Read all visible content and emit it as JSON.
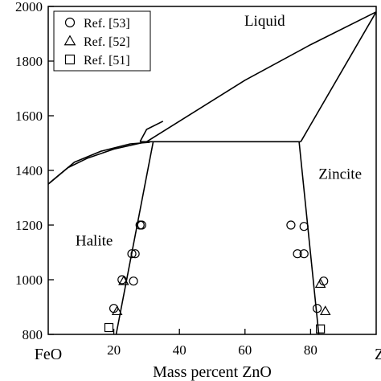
{
  "chart_data": {
    "type": "scatter",
    "title": "",
    "xlabel": "Mass percent ZnO",
    "ylabel": "",
    "xlim": [
      0,
      100
    ],
    "ylim": [
      800,
      2000
    ],
    "x_ticks": [
      20,
      40,
      60,
      80
    ],
    "x_tick_labels": [
      "20",
      "40",
      "60",
      "80"
    ],
    "x_end_labels": {
      "left": "FeO",
      "right": "Zn"
    },
    "y_ticks": [
      800,
      1000,
      1200,
      1400,
      1600,
      1800,
      2000
    ],
    "y_tick_labels": [
      "800",
      "1000",
      "1200",
      "1400",
      "1600",
      "1800",
      "2000"
    ],
    "grid": false,
    "legend_position": "top-left",
    "region_labels": [
      {
        "text": "Liquid",
        "x": 66,
        "y": 1950
      },
      {
        "text": "Zincite",
        "x": 89,
        "y": 1390
      },
      {
        "text": "Halite",
        "x": 14,
        "y": 1145
      }
    ],
    "phase_boundaries": [
      {
        "name": "liquidus-upper",
        "points": [
          [
            0,
            1350
          ],
          [
            6,
            1410
          ],
          [
            12,
            1445
          ],
          [
            20,
            1478
          ],
          [
            30,
            1505
          ],
          [
            40,
            1580
          ],
          [
            60,
            1730
          ],
          [
            80,
            1860
          ],
          [
            100,
            1980
          ]
        ]
      },
      {
        "name": "halite-liquidus",
        "points": [
          [
            0,
            1350
          ],
          [
            8,
            1430
          ],
          [
            16,
            1470
          ],
          [
            25,
            1497
          ],
          [
            31,
            1503
          ]
        ]
      },
      {
        "name": "halite-solidus",
        "points": [
          [
            28,
            1505
          ],
          [
            30,
            1550
          ],
          [
            35,
            1580
          ]
        ]
      },
      {
        "name": "eutectic",
        "points": [
          [
            28,
            1505
          ],
          [
            77,
            1505
          ]
        ]
      },
      {
        "name": "zincite-liquidus",
        "points": [
          [
            77,
            1505
          ],
          [
            100,
            1980
          ]
        ]
      },
      {
        "name": "halite-solvus",
        "points": [
          [
            20.7,
            800
          ],
          [
            32,
            1505
          ]
        ]
      },
      {
        "name": "zincite-solvus",
        "points": [
          [
            76.5,
            1505
          ],
          [
            82.5,
            800
          ]
        ]
      }
    ],
    "series": [
      {
        "name": "Ref. [53]",
        "marker": "circle",
        "points": [
          [
            28,
            1200
          ],
          [
            28.5,
            1200
          ],
          [
            26.5,
            1095
          ],
          [
            25.5,
            1095
          ],
          [
            26,
            995
          ],
          [
            22.5,
            1000
          ],
          [
            20,
            895
          ],
          [
            74,
            1200
          ],
          [
            78,
            1195
          ],
          [
            76,
            1095
          ],
          [
            78,
            1095
          ],
          [
            84,
            995
          ],
          [
            82,
            895
          ]
        ]
      },
      {
        "name": "Ref. [52]",
        "marker": "triangle",
        "points": [
          [
            23,
            995
          ],
          [
            21,
            885
          ],
          [
            83,
            985
          ],
          [
            84.5,
            885
          ]
        ]
      },
      {
        "name": "Ref. [51]",
        "marker": "square",
        "points": [
          [
            18.5,
            825
          ],
          [
            83,
            820
          ]
        ]
      }
    ]
  }
}
